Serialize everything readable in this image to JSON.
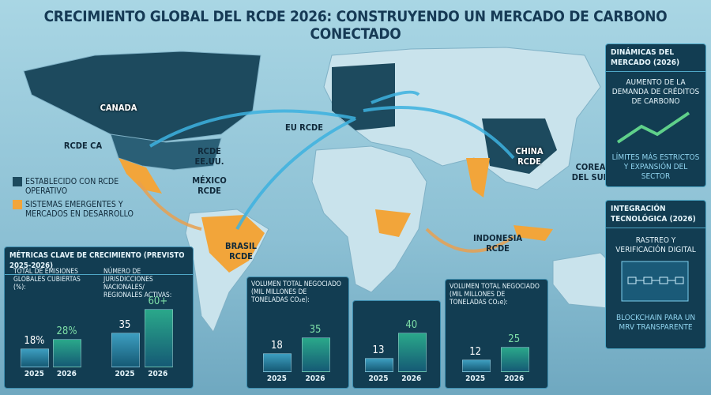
{
  "title": "CRECIMIENTO GLOBAL DEL RCDE 2026: CONSTRUYENDO UN MERCADO DE CARBONO CONECTADO",
  "map_labels": [
    "CANADA",
    "RCDE CA",
    "RCDE EE.UU.",
    "MÉXICO RCDE",
    "EU RCDE",
    "CHINA RCDE",
    "COREA DEL SUR",
    "INDONESIA RCDE",
    "BRASIL RCDE"
  ],
  "legend": [
    {
      "label": "ESTABLECIDO CON RCDE OPERATIVO",
      "color": "#1d4a5e"
    },
    {
      "label": "SISTEMAS EMERGENTES Y MERCADOS EN DESARROLLO",
      "color": "#f2a53a"
    }
  ],
  "market_panel": {
    "title": "DINÁMICAS DEL MERCADO (2026)",
    "items": [
      "AUMENTO DE LA DEMANDA DE CRÉDITOS DE CARBONO",
      "LÍMITES MÁS ESTRICTOS Y EXPANSIÓN DEL SECTOR"
    ]
  },
  "tech_panel": {
    "title": "INTEGRACIÓN TECNOLÓGICA (2026)",
    "items": [
      "RASTREO Y VERIFICACIÓN DIGITAL",
      "BLOCKCHAIN PARA UN MRV TRANSPARENTE"
    ]
  },
  "metrics": {
    "title": "MÉTRICAS CLAVE DE CRECIMIENTO (PREVISTO 2025-2026)",
    "charts": [
      {
        "title": "TOTAL DE EMISIONES GLOBALES CUBIERTAS (%):",
        "categories": [
          "2025",
          "2026"
        ],
        "values": [
          18,
          28
        ],
        "value_labels": [
          "18%",
          "28%"
        ]
      },
      {
        "title": "NÚMERO DE JURISDICCIONES NACIONALES/ REGIONALES ACTIVAS:",
        "categories": [
          "2025",
          "2026"
        ],
        "values": [
          35,
          60
        ],
        "value_labels": [
          "35",
          "60+"
        ]
      },
      {
        "title": "VOLUMEN TOTAL NEGOCIADO (MIL MILLONES DE TONELADAS CO₂e):",
        "categories": [
          "2025",
          "2026"
        ],
        "values": [
          18,
          35
        ]
      },
      {
        "categories": [
          "2025",
          "2026"
        ],
        "values": [
          13,
          40
        ]
      },
      {
        "title": "VOLUMEN TOTAL NEGOCIADO (MIL MILLONES DE TONELADAS CO₂e):",
        "categories": [
          "2025",
          "2026"
        ],
        "values": [
          12,
          25
        ]
      }
    ]
  }
}
